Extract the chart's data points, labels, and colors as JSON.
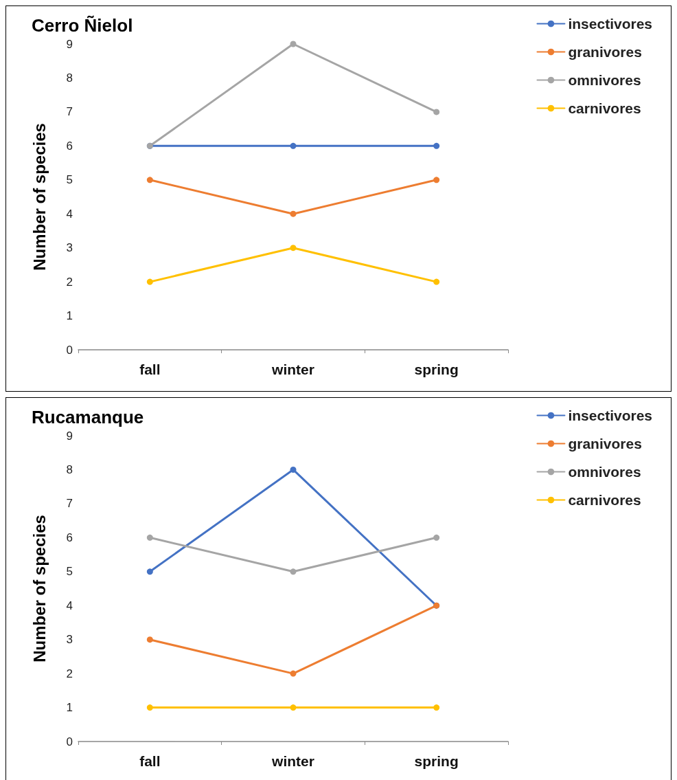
{
  "chart_data": [
    {
      "type": "line",
      "title": "Cerro Ñielol",
      "ylabel": "Number of species",
      "categories": [
        "fall",
        "winter",
        "spring"
      ],
      "ylim": [
        0,
        9
      ],
      "yticks": [
        0,
        1,
        2,
        3,
        4,
        5,
        6,
        7,
        8,
        9
      ],
      "grid": false,
      "legend": "top right",
      "marker": "circle",
      "line_style": "solid",
      "series": [
        {
          "name": "insectivores",
          "color": "#4472c4",
          "values": [
            6,
            6,
            6
          ]
        },
        {
          "name": "granivores",
          "color": "#ed7d31",
          "values": [
            5,
            4,
            5
          ]
        },
        {
          "name": "omnivores",
          "color": "#a5a5a5",
          "values": [
            6,
            9,
            7
          ]
        },
        {
          "name": "carnivores",
          "color": "#ffc000",
          "values": [
            2,
            3,
            2
          ]
        }
      ]
    },
    {
      "type": "line",
      "title": "Rucamanque",
      "ylabel": "Number of species",
      "categories": [
        "fall",
        "winter",
        "spring"
      ],
      "ylim": [
        0,
        9
      ],
      "yticks": [
        0,
        1,
        2,
        3,
        4,
        5,
        6,
        7,
        8,
        9
      ],
      "grid": false,
      "legend": "top right",
      "marker": "circle",
      "line_style": "solid",
      "series": [
        {
          "name": "insectivores",
          "color": "#4472c4",
          "values": [
            5,
            8,
            4
          ]
        },
        {
          "name": "granivores",
          "color": "#ed7d31",
          "values": [
            3,
            2,
            4
          ]
        },
        {
          "name": "omnivores",
          "color": "#a5a5a5",
          "values": [
            6,
            5,
            6
          ]
        },
        {
          "name": "carnivores",
          "color": "#ffc000",
          "values": [
            1,
            1,
            1
          ]
        }
      ]
    }
  ]
}
